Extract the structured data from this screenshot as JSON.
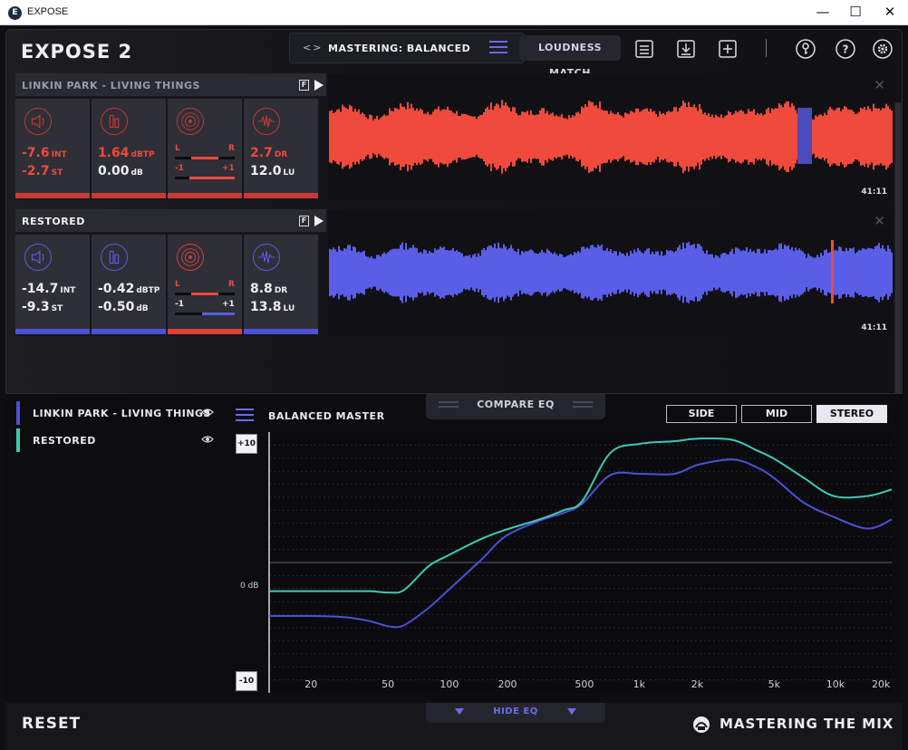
{
  "window": {
    "title": "EXPOSE",
    "app_icon_letter": "E",
    "minimize": "—",
    "maximize": "☐",
    "close": "✕"
  },
  "header": {
    "logo": "EXPOSE 2",
    "preset_arrows": "<>",
    "preset_name": "MASTERING: BALANCED",
    "loudness_match": "LOUDNESS MATCH",
    "icons": [
      "notes-icon",
      "export-icon",
      "add-icon",
      "key-icon",
      "help-icon",
      "settings-icon"
    ]
  },
  "tracks": [
    {
      "name": "LINKIN PARK - LIVING THINGS",
      "color": "#f04a3c",
      "bar_colors": [
        "#c83a33",
        "#c83a33",
        "#c83a33",
        "#c83a33"
      ],
      "loudness": {
        "int": "-7.6",
        "int_unit": "INT",
        "st": "-2.7",
        "st_unit": "ST"
      },
      "peak": {
        "dbtp": "1.64",
        "dbtp_unit": "dBTP",
        "db": "0.00",
        "db_unit": "dB"
      },
      "stereo": {
        "l": "L",
        "r": "R",
        "minus": "-1",
        "plus": "+1"
      },
      "dynamics": {
        "dr": "2.7",
        "dr_unit": "DR",
        "lu": "12.0",
        "lu_unit": "LU"
      },
      "f_label": "F",
      "timecode": "41:11"
    },
    {
      "name": "RESTORED",
      "color": "#5a5ee6",
      "bar_colors": [
        "#4d50d8",
        "#4d50d8",
        "#e0403a",
        "#4d50d8"
      ],
      "loudness": {
        "int": "-14.7",
        "int_unit": "INT",
        "st": "-9.3",
        "st_unit": "ST"
      },
      "peak": {
        "dbtp": "-0.42",
        "dbtp_unit": "dBTP",
        "db": "-0.50",
        "db_unit": "dB"
      },
      "stereo": {
        "l": "L",
        "r": "R",
        "minus": "-1",
        "plus": "+1"
      },
      "dynamics": {
        "dr": "8.8",
        "dr_unit": "DR",
        "lu": "13.8",
        "lu_unit": "LU"
      },
      "f_label": "F",
      "timecode": "41:11"
    }
  ],
  "eq": {
    "compare_label": "COMPARE EQ",
    "legend": [
      {
        "name": "LINKIN PARK - LIVING THINGS",
        "color": "#4d50d8"
      },
      {
        "name": "RESTORED",
        "color": "#3ec9b4"
      }
    ],
    "balanced_label": "BALANCED MASTER",
    "modes": [
      "SIDE",
      "MID",
      "STEREO"
    ],
    "active_mode": "STEREO",
    "scale_top": "+10",
    "scale_bottom": "-10",
    "zero_label": "0 dB",
    "freq_labels": [
      "20",
      "50",
      "100",
      "200",
      "500",
      "1k",
      "2k",
      "5k",
      "10k",
      "20k"
    ]
  },
  "chart_data": {
    "type": "line",
    "xlabel": "",
    "ylabel": "",
    "x_scale": "log",
    "xlim": [
      20,
      20000
    ],
    "ylim": [
      -10,
      10
    ],
    "x": [
      12,
      20,
      30,
      40,
      50,
      60,
      80,
      100,
      150,
      200,
      300,
      400,
      500,
      700,
      1000,
      1500,
      2000,
      3000,
      4000,
      5000,
      7000,
      10000,
      15000,
      20000
    ],
    "series": [
      {
        "name": "LINKIN PARK - LIVING THINGS",
        "color": "#4d50d8",
        "values": [
          -4.1,
          -4.1,
          -4.2,
          -4.5,
          -4.9,
          -4.8,
          -3.5,
          -2.2,
          0.2,
          2.0,
          3.2,
          3.8,
          4.5,
          6.7,
          6.8,
          6.8,
          7.5,
          7.9,
          7.3,
          6.4,
          4.6,
          3.5,
          2.6,
          3.3
        ]
      },
      {
        "name": "RESTORED",
        "color": "#3ec9b4",
        "values": [
          -2.2,
          -2.2,
          -2.2,
          -2.2,
          -2.3,
          -2.1,
          -0.3,
          0.5,
          1.8,
          2.5,
          3.3,
          4.0,
          4.7,
          8.4,
          9.1,
          9.3,
          9.5,
          9.4,
          8.6,
          7.9,
          6.5,
          5.1,
          5.1,
          5.6
        ]
      }
    ],
    "grid": true
  }
}
